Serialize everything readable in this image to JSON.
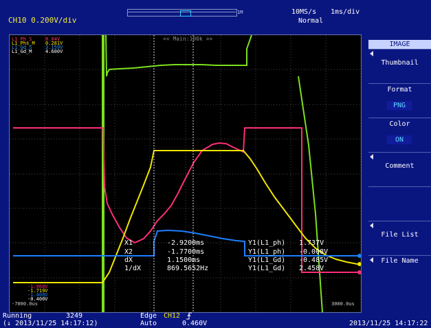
{
  "header": {
    "channel_label": "CH10  0.200V/div",
    "zoom_suffix": "1M",
    "sample_rate": "10MS/s",
    "time_div": "1ms/div",
    "trigger_mode": "Normal"
  },
  "screen": {
    "zoom_label": "<< Main:100k >>",
    "time_left": "-7000.0us",
    "time_right": "3000.0us",
    "legend": [
      {
        "name": "L1_Ph_S",
        "value": "8.04V",
        "color": "#ff3b6b"
      },
      {
        "name": "L1_Phs_M",
        "value": "0.281V",
        "color": "#ffe600"
      },
      {
        "name": "L1_Gd_S",
        "value": "3.159V",
        "color": "#3399ff"
      },
      {
        "name": "L1_Gd_M",
        "value": "4.600V",
        "color": "#ffffff"
      }
    ],
    "bottom_left_values": [
      "-1.960V",
      "-1.719V",
      "-1.400V",
      "-0.400V"
    ],
    "cursors": {
      "x1_label": "X1",
      "x1_value": "-2.9200ms",
      "x2_label": "X2",
      "x2_value": "-1.7700ms",
      "dx_label": "dX",
      "dx_value": "1.1500ms",
      "inv_label": "1/dX",
      "inv_value": "869.5652Hz",
      "y_rows": [
        {
          "label": "Y1(L1_ph)",
          "value": "1.737V"
        },
        {
          "label": "Y1(L1_ph)",
          "value": "-0.008V"
        },
        {
          "label": "Y1(L1_Gd)",
          "value": "-0.485V"
        },
        {
          "label": "Y1(L1_Gd)",
          "value": "2.458V"
        }
      ]
    }
  },
  "menu": {
    "header": "IMAGE",
    "items": [
      {
        "title": "Thumbnail",
        "value": ""
      },
      {
        "title": "Format",
        "value": "PNG"
      },
      {
        "title": "Color",
        "value": "ON"
      },
      {
        "title": "Comment",
        "value": ""
      },
      {
        "title": "",
        "value": ""
      },
      {
        "title": "File List",
        "value": ""
      },
      {
        "title": "File Name",
        "value": ""
      }
    ]
  },
  "status": {
    "state": "Running",
    "count": "3249",
    "datetime_left": "(↓ 2013/11/25 14:17:12)",
    "trigger_type": "Edge",
    "trigger_channel": "CH12",
    "trigger_slope_icon": "rising-edge-icon",
    "trigger_mode": "Auto",
    "trigger_level": "0.460V",
    "datetime_right": "2013/11/25 14:17:22"
  },
  "colors": {
    "green": "#7de01e",
    "magenta": "#ff2e7a",
    "yellow": "#f0e600",
    "blue": "#1e7fff",
    "grid": "#4a4a4a"
  }
}
